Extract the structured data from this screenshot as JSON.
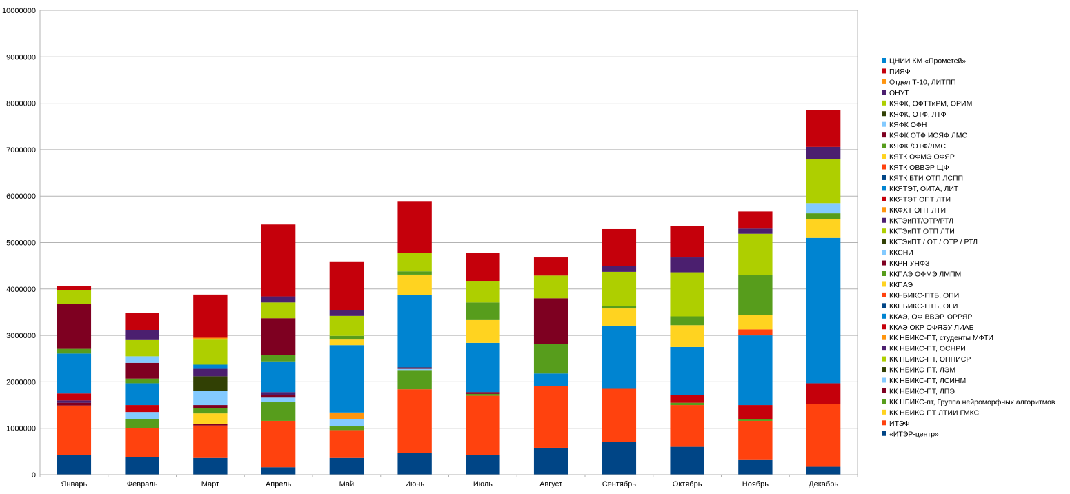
{
  "chart_data": {
    "type": "bar",
    "stacked": true,
    "categories": [
      "Январь",
      "Февраль",
      "Март",
      "Апрель",
      "Май",
      "Июнь",
      "Июль",
      "Август",
      "Сентябрь",
      "Октябрь",
      "Ноябрь",
      "Декабрь"
    ],
    "ylim": [
      0,
      10000000
    ],
    "yticks": [
      "0",
      "1000000",
      "2000000",
      "3000000",
      "4000000",
      "5000000",
      "6000000",
      "7000000",
      "8000000",
      "9000000",
      "10000000"
    ],
    "grid": true,
    "legend_position": "right",
    "series": [
      {
        "name": "«ИТЭР-центр»",
        "color": "#004586",
        "values": [
          430000,
          380000,
          360000,
          160000,
          360000,
          470000,
          430000,
          580000,
          700000,
          600000,
          330000,
          170000
        ]
      },
      {
        "name": "ИТЭФ",
        "color": "#ff420e",
        "values": [
          1060000,
          630000,
          700000,
          1000000,
          600000,
          1370000,
          1270000,
          1330000,
          1150000,
          900000,
          830000,
          1350000
        ]
      },
      {
        "name": "КК НБИКС-ПТ ЛТИИ ГМКС",
        "color": "#ffd320",
        "values": [
          0,
          0,
          0,
          0,
          0,
          0,
          0,
          0,
          0,
          0,
          0,
          0
        ]
      },
      {
        "name": "КК НБИКС-пт, Группа нейроморфных алгоритмов",
        "color": "#579d1c",
        "values": [
          0,
          190000,
          0,
          400000,
          80000,
          400000,
          40000,
          0,
          0,
          50000,
          40000,
          0
        ]
      },
      {
        "name": "КК НБИКС-ПТ, ЛПЭ",
        "color": "#7e0021",
        "values": [
          0,
          0,
          40000,
          0,
          0,
          0,
          0,
          0,
          0,
          0,
          0,
          0
        ]
      },
      {
        "name": "КК НБИКС-ПТ, ЛСИНМ",
        "color": "#83caff",
        "values": [
          0,
          150000,
          0,
          100000,
          150000,
          40000,
          0,
          0,
          0,
          0,
          0,
          0
        ]
      },
      {
        "name": "КК НБИКС-ПТ, ЛЭМ",
        "color": "#314004",
        "values": [
          0,
          0,
          0,
          0,
          0,
          0,
          0,
          0,
          0,
          0,
          0,
          0
        ]
      },
      {
        "name": "КК НБИКС-ПТ, ОННИСР",
        "color": "#aecf00",
        "values": [
          0,
          0,
          0,
          0,
          0,
          0,
          0,
          0,
          0,
          0,
          0,
          0
        ]
      },
      {
        "name": "КК НБИКС-ПТ, ОСНРИ",
        "color": "#4b1f6f",
        "values": [
          0,
          0,
          0,
          0,
          0,
          0,
          0,
          0,
          0,
          0,
          0,
          0
        ]
      },
      {
        "name": "КК НБИКС-ПТ, студенты МФТИ",
        "color": "#ff950e",
        "values": [
          0,
          0,
          0,
          0,
          150000,
          0,
          0,
          0,
          0,
          0,
          0,
          0
        ]
      },
      {
        "name": "ККАЭ ОКР ОФЯЭУ ЛИАБ",
        "color": "#c5000b",
        "values": [
          0,
          0,
          0,
          0,
          0,
          0,
          0,
          0,
          0,
          0,
          0,
          0
        ]
      },
      {
        "name": "ККАЭ, ОФ ВВЭР, ОРРЯР",
        "color": "#0084d1",
        "values": [
          0,
          0,
          0,
          0,
          0,
          0,
          0,
          0,
          0,
          0,
          0,
          0
        ]
      },
      {
        "name": "ККНБИКС-ПТБ, ОГИ",
        "color": "#004586",
        "values": [
          0,
          0,
          0,
          0,
          0,
          0,
          0,
          0,
          0,
          0,
          0,
          0
        ]
      },
      {
        "name": "ККНБИКС-ПТБ, ОПИ",
        "color": "#ff420e",
        "values": [
          0,
          0,
          0,
          0,
          0,
          0,
          0,
          0,
          0,
          0,
          0,
          0
        ]
      },
      {
        "name": "ККПАЭ",
        "color": "#ffd320",
        "values": [
          0,
          0,
          220000,
          0,
          0,
          0,
          0,
          0,
          0,
          0,
          0,
          0
        ]
      },
      {
        "name": "ККПАЭ ОФМЭ ЛМПМ",
        "color": "#579d1c",
        "values": [
          0,
          0,
          120000,
          0,
          0,
          0,
          0,
          0,
          0,
          0,
          0,
          0
        ]
      },
      {
        "name": "ККРН УНФЗ",
        "color": "#7e0021",
        "values": [
          60000,
          0,
          60000,
          60000,
          0,
          30000,
          40000,
          0,
          0,
          0,
          0,
          0
        ]
      },
      {
        "name": "ККСНИ",
        "color": "#83caff",
        "values": [
          0,
          0,
          300000,
          0,
          0,
          0,
          0,
          0,
          0,
          0,
          0,
          0
        ]
      },
      {
        "name": "ККТЭиПТ / ОТ / ОТР / РТЛ",
        "color": "#314004",
        "values": [
          0,
          0,
          320000,
          0,
          0,
          0,
          0,
          0,
          0,
          0,
          0,
          0
        ]
      },
      {
        "name": "ККТЭиПТ ОТП ЛТИ",
        "color": "#aecf00",
        "values": [
          0,
          0,
          0,
          0,
          0,
          0,
          0,
          0,
          0,
          0,
          0,
          0
        ]
      },
      {
        "name": "ККТЭиПТ/ОТР/РТЛ",
        "color": "#4b1f6f",
        "values": [
          50000,
          0,
          160000,
          60000,
          0,
          0,
          0,
          0,
          0,
          0,
          0,
          0
        ]
      },
      {
        "name": "ККФХТ ОПТ ЛТИ",
        "color": "#ff950e",
        "values": [
          0,
          0,
          0,
          0,
          0,
          0,
          0,
          0,
          0,
          0,
          0,
          0
        ]
      },
      {
        "name": "ККЯТЭТ ОПТ ЛТИ",
        "color": "#c5000b",
        "values": [
          150000,
          150000,
          0,
          0,
          0,
          0,
          0,
          0,
          0,
          170000,
          300000,
          450000
        ]
      },
      {
        "name": "ККЯТЭТ, ОИТА, ЛИТ",
        "color": "#0084d1",
        "values": [
          860000,
          470000,
          90000,
          660000,
          1450000,
          1560000,
          1060000,
          270000,
          1360000,
          1030000,
          1500000,
          3130000
        ]
      },
      {
        "name": "КЯТК БТИ ОТП ЛСПП",
        "color": "#004586",
        "values": [
          0,
          0,
          0,
          0,
          0,
          0,
          0,
          0,
          0,
          0,
          0,
          0
        ]
      },
      {
        "name": "КЯТК ОВВЭР ЩФ",
        "color": "#ff420e",
        "values": [
          0,
          0,
          0,
          0,
          0,
          0,
          0,
          0,
          0,
          0,
          130000,
          0
        ]
      },
      {
        "name": "КЯТК ОФМЭ ОФЯР",
        "color": "#ffd320",
        "values": [
          0,
          0,
          0,
          0,
          120000,
          440000,
          490000,
          0,
          370000,
          470000,
          310000,
          410000
        ]
      },
      {
        "name": "КЯФК /ОТФ/ЛМС",
        "color": "#579d1c",
        "values": [
          100000,
          100000,
          0,
          140000,
          80000,
          70000,
          380000,
          630000,
          50000,
          190000,
          860000,
          120000
        ]
      },
      {
        "name": "КЯФК ОТФ ИОЯФ ЛМС",
        "color": "#7e0021",
        "values": [
          970000,
          340000,
          0,
          790000,
          0,
          0,
          0,
          990000,
          0,
          0,
          0,
          0
        ]
      },
      {
        "name": "КЯФК ОФН",
        "color": "#83caff",
        "values": [
          0,
          140000,
          0,
          0,
          0,
          0,
          0,
          0,
          0,
          0,
          0,
          220000
        ]
      },
      {
        "name": "КЯФК, ОТФ, ЛТФ",
        "color": "#314004",
        "values": [
          0,
          0,
          0,
          0,
          0,
          0,
          0,
          0,
          0,
          0,
          0,
          0
        ]
      },
      {
        "name": "КЯФК, ОФТТиРМ, ОРИМ",
        "color": "#aecf00",
        "values": [
          300000,
          350000,
          540000,
          340000,
          430000,
          400000,
          450000,
          490000,
          740000,
          950000,
          890000,
          940000
        ]
      },
      {
        "name": "ОНУТ",
        "color": "#4b1f6f",
        "values": [
          0,
          210000,
          0,
          130000,
          120000,
          0,
          0,
          0,
          130000,
          320000,
          110000,
          270000
        ]
      },
      {
        "name": "Отдел Т-10, ЛИТПП",
        "color": "#ff950e",
        "values": [
          0,
          0,
          40000,
          0,
          0,
          0,
          0,
          0,
          0,
          0,
          0,
          0
        ]
      },
      {
        "name": "ПИЯФ",
        "color": "#c5000b",
        "values": [
          90000,
          370000,
          930000,
          1550000,
          1040000,
          1100000,
          620000,
          390000,
          790000,
          670000,
          370000,
          790000
        ]
      },
      {
        "name": "ЦНИИ КМ «Прометей»",
        "color": "#0084d1",
        "values": [
          0,
          0,
          0,
          0,
          0,
          0,
          0,
          0,
          0,
          0,
          0,
          0
        ]
      }
    ]
  }
}
